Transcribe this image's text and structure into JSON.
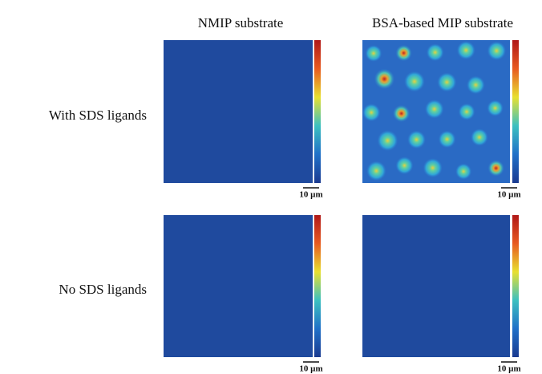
{
  "columns": [
    "NMIP substrate",
    "BSA-based MIP substrate"
  ],
  "rows": [
    "With SDS ligands",
    "No SDS ligands"
  ],
  "scale_bars": [
    "10 µm",
    "10 µm",
    "10 µm",
    "10 µm"
  ]
}
